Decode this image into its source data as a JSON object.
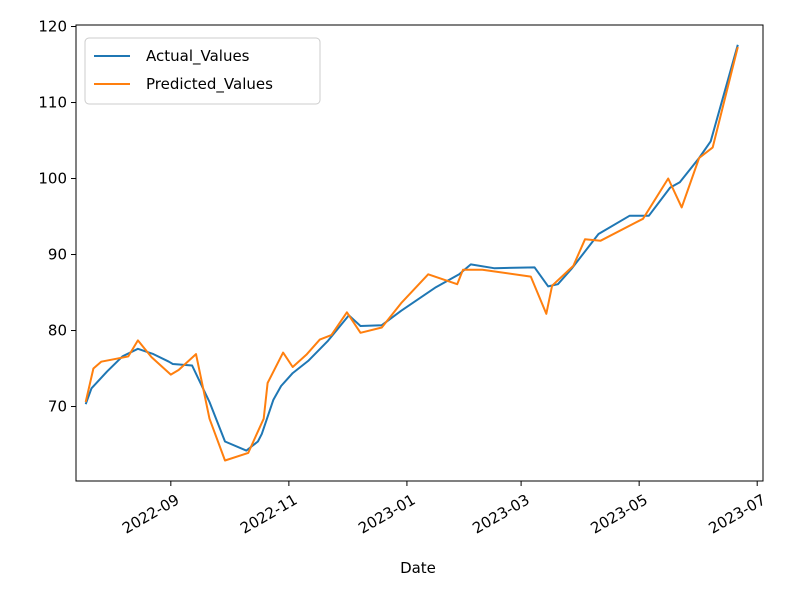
{
  "chart_data": {
    "type": "line",
    "title": "",
    "xlabel": "Date",
    "ylabel": "",
    "x_ticks": [
      "2022-09",
      "2022-11",
      "2023-01",
      "2023-03",
      "2023-05",
      "2023-07"
    ],
    "y_ticks": [
      70,
      80,
      90,
      100,
      110,
      120
    ],
    "xlim": [
      "2022-07-14",
      "2023-07-04"
    ],
    "ylim": [
      60.2,
      120.2
    ],
    "grid": false,
    "legend": "upper-left",
    "series": [
      {
        "name": "Actual_Values",
        "color": "#1f77b4",
        "points": [
          [
            "2022-07-19",
            70.3
          ],
          [
            "2022-07-22",
            72.4
          ],
          [
            "2022-07-30",
            74.6
          ],
          [
            "2022-08-07",
            76.6
          ],
          [
            "2022-08-15",
            77.6
          ],
          [
            "2022-08-23",
            76.9
          ],
          [
            "2022-08-31",
            75.9
          ],
          [
            "2022-09-02",
            75.6
          ],
          [
            "2022-09-12",
            75.4
          ],
          [
            "2022-09-21",
            70.6
          ],
          [
            "2022-09-29",
            65.4
          ],
          [
            "2022-10-10",
            64.2
          ],
          [
            "2022-10-16",
            65.4
          ],
          [
            "2022-10-18",
            66.4
          ],
          [
            "2022-10-24",
            70.9
          ],
          [
            "2022-10-28",
            72.7
          ],
          [
            "2022-11-03",
            74.4
          ],
          [
            "2022-11-11",
            76.0
          ],
          [
            "2022-11-21",
            78.6
          ],
          [
            "2022-12-02",
            82.0
          ],
          [
            "2022-12-08",
            80.6
          ],
          [
            "2022-12-19",
            80.7
          ],
          [
            "2022-12-29",
            82.6
          ],
          [
            "2023-01-16",
            85.7
          ],
          [
            "2023-01-28",
            87.4
          ],
          [
            "2023-02-03",
            88.7
          ],
          [
            "2023-02-15",
            88.2
          ],
          [
            "2023-03-08",
            88.3
          ],
          [
            "2023-03-15",
            85.8
          ],
          [
            "2023-03-20",
            86.1
          ],
          [
            "2023-03-27",
            88.1
          ],
          [
            "2023-04-10",
            92.7
          ],
          [
            "2023-04-26",
            95.1
          ],
          [
            "2023-05-06",
            95.1
          ],
          [
            "2023-05-17",
            98.8
          ],
          [
            "2023-05-22",
            99.5
          ],
          [
            "2023-06-01",
            102.7
          ],
          [
            "2023-06-07",
            104.9
          ],
          [
            "2023-06-21",
            117.6
          ]
        ]
      },
      {
        "name": "Predicted_Values",
        "color": "#ff7f0e",
        "points": [
          [
            "2022-07-19",
            70.6
          ],
          [
            "2022-07-23",
            75.0
          ],
          [
            "2022-07-27",
            75.9
          ],
          [
            "2022-08-10",
            76.6
          ],
          [
            "2022-08-15",
            78.7
          ],
          [
            "2022-08-22",
            76.5
          ],
          [
            "2022-09-01",
            74.2
          ],
          [
            "2022-09-05",
            74.8
          ],
          [
            "2022-09-14",
            76.9
          ],
          [
            "2022-09-21",
            68.4
          ],
          [
            "2022-09-29",
            62.9
          ],
          [
            "2022-10-11",
            63.9
          ],
          [
            "2022-10-19",
            68.4
          ],
          [
            "2022-10-21",
            73.1
          ],
          [
            "2022-10-29",
            77.1
          ],
          [
            "2022-11-03",
            75.2
          ],
          [
            "2022-11-10",
            76.8
          ],
          [
            "2022-11-17",
            78.8
          ],
          [
            "2022-11-23",
            79.4
          ],
          [
            "2022-12-01",
            82.4
          ],
          [
            "2022-12-08",
            79.7
          ],
          [
            "2022-12-19",
            80.4
          ],
          [
            "2022-12-29",
            83.6
          ],
          [
            "2023-01-12",
            87.4
          ],
          [
            "2023-01-27",
            86.1
          ],
          [
            "2023-01-30",
            88.0
          ],
          [
            "2023-02-09",
            88.0
          ],
          [
            "2023-03-06",
            87.1
          ],
          [
            "2023-03-14",
            82.2
          ],
          [
            "2023-03-17",
            85.9
          ],
          [
            "2023-03-28",
            88.5
          ],
          [
            "2023-04-03",
            92.0
          ],
          [
            "2023-04-11",
            91.8
          ],
          [
            "2023-05-03",
            94.7
          ],
          [
            "2023-05-16",
            100.0
          ],
          [
            "2023-05-23",
            96.2
          ],
          [
            "2023-06-01",
            102.7
          ],
          [
            "2023-06-08",
            104.1
          ],
          [
            "2023-06-21",
            117.3
          ]
        ]
      }
    ]
  }
}
